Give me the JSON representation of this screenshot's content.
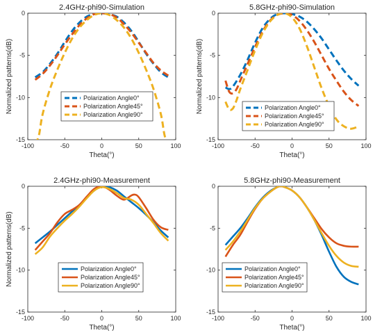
{
  "chart_data": [
    {
      "type": "line",
      "title": "2.4GHz-phi90-Simulation",
      "xlabel": "Theta(°)",
      "ylabel": "Normalized patterns(dB)",
      "xlim": [
        -100,
        100
      ],
      "ylim": [
        -15,
        0
      ],
      "xticks": [
        "-100",
        "-50",
        "0",
        "50",
        "100"
      ],
      "yticks": [
        "0",
        "-5",
        "-10",
        "-15"
      ],
      "grid": false,
      "line_style": "dashed",
      "legend": "center-bottom",
      "series": [
        {
          "name": "Polarization Angle0°",
          "color": "#0072BD",
          "x": [
            -90,
            -80,
            -70,
            -60,
            -50,
            -40,
            -30,
            -20,
            -10,
            0,
            10,
            20,
            30,
            40,
            50,
            60,
            70,
            80,
            90
          ],
          "y": [
            -7.6,
            -7.0,
            -6.0,
            -4.8,
            -3.4,
            -2.1,
            -1.1,
            -0.4,
            -0.1,
            0,
            -0.1,
            -0.4,
            -1.1,
            -2.1,
            -3.4,
            -4.8,
            -6.0,
            -7.0,
            -7.6
          ]
        },
        {
          "name": "Polarization Angle45°",
          "color": "#D95319",
          "x": [
            -90,
            -80,
            -70,
            -60,
            -50,
            -40,
            -30,
            -20,
            -10,
            0,
            10,
            20,
            30,
            40,
            50,
            60,
            70,
            80,
            90
          ],
          "y": [
            -7.9,
            -7.2,
            -6.2,
            -5.0,
            -3.7,
            -2.5,
            -1.4,
            -0.6,
            -0.1,
            0,
            -0.1,
            -0.5,
            -1.3,
            -2.3,
            -3.5,
            -4.7,
            -5.9,
            -6.8,
            -7.4
          ]
        },
        {
          "name": "Polarization Angle90°",
          "color": "#EDB120",
          "x": [
            -90,
            -85,
            -80,
            -70,
            -60,
            -50,
            -40,
            -30,
            -20,
            -10,
            0,
            10,
            20,
            30,
            40,
            50,
            60,
            70,
            80,
            85,
            90
          ],
          "y": [
            -15.5,
            -14.5,
            -12.0,
            -9.0,
            -6.7,
            -4.7,
            -3.0,
            -1.7,
            -0.8,
            -0.2,
            0,
            -0.2,
            -0.8,
            -1.7,
            -3.0,
            -4.7,
            -6.7,
            -9.0,
            -12.0,
            -14.5,
            -15.5
          ]
        }
      ]
    },
    {
      "type": "line",
      "title": "5.8GHz-phi90-Simulation",
      "xlabel": "Theta(°)",
      "ylabel": "Normalized patterns(dB)",
      "xlim": [
        -100,
        100
      ],
      "ylim": [
        -15,
        0
      ],
      "xticks": [
        "-100",
        "-50",
        "0",
        "50",
        "100"
      ],
      "yticks": [
        "0",
        "-5",
        "-10",
        "-15"
      ],
      "grid": false,
      "line_style": "dashed",
      "legend": "bottom-right",
      "series": [
        {
          "name": "Polarization Angle0°",
          "color": "#0072BD",
          "x": [
            -90,
            -85,
            -80,
            -70,
            -60,
            -50,
            -40,
            -30,
            -20,
            -10,
            0,
            10,
            20,
            30,
            40,
            50,
            60,
            70,
            80,
            90
          ],
          "y": [
            -8.8,
            -9.0,
            -8.7,
            -7.3,
            -5.5,
            -3.5,
            -1.8,
            -0.7,
            -0.1,
            0,
            -0.1,
            -0.4,
            -1.0,
            -1.9,
            -3.0,
            -4.3,
            -5.6,
            -6.8,
            -7.8,
            -8.6
          ]
        },
        {
          "name": "Polarization Angle45°",
          "color": "#D95319",
          "x": [
            -90,
            -85,
            -80,
            -75,
            -70,
            -60,
            -50,
            -40,
            -30,
            -20,
            -10,
            0,
            10,
            20,
            30,
            40,
            50,
            60,
            70,
            80,
            90
          ],
          "y": [
            -8.0,
            -9.3,
            -9.5,
            -9.0,
            -8.0,
            -6.0,
            -4.0,
            -2.2,
            -0.9,
            -0.2,
            0,
            -0.2,
            -0.9,
            -2.0,
            -3.4,
            -5.0,
            -6.6,
            -8.0,
            -9.3,
            -10.3,
            -11.0
          ]
        },
        {
          "name": "Polarization Angle90°",
          "color": "#EDB120",
          "x": [
            -90,
            -85,
            -80,
            -75,
            -70,
            -60,
            -50,
            -40,
            -30,
            -20,
            -10,
            0,
            10,
            20,
            30,
            40,
            50,
            60,
            70,
            80,
            90
          ],
          "y": [
            -10.5,
            -11.4,
            -11.3,
            -10.3,
            -9.0,
            -6.7,
            -4.4,
            -2.4,
            -1.0,
            -0.2,
            0,
            -0.5,
            -1.8,
            -3.9,
            -6.4,
            -8.9,
            -11.0,
            -12.6,
            -13.4,
            -13.7,
            -13.4
          ]
        }
      ]
    },
    {
      "type": "line",
      "title": "2.4GHz-phi90-Measurement",
      "xlabel": "Theta(°)",
      "ylabel": "Normalized patterns(dB)",
      "xlim": [
        -100,
        100
      ],
      "ylim": [
        -15,
        0
      ],
      "xticks": [
        "-100",
        "-50",
        "0",
        "50",
        "100"
      ],
      "yticks": [
        "0",
        "-5",
        "-10",
        "-15"
      ],
      "grid": false,
      "line_style": "solid",
      "legend": "center-bottom",
      "series": [
        {
          "name": "Polarization Angle0°",
          "color": "#0072BD",
          "x": [
            -90,
            -80,
            -70,
            -60,
            -50,
            -40,
            -30,
            -20,
            -10,
            0,
            10,
            20,
            30,
            40,
            50,
            60,
            70,
            80,
            90
          ],
          "y": [
            -6.8,
            -6.1,
            -5.4,
            -4.6,
            -3.8,
            -3.0,
            -2.2,
            -1.3,
            -0.5,
            0,
            -0.1,
            -0.5,
            -1.2,
            -1.9,
            -2.6,
            -3.4,
            -4.3,
            -5.3,
            -6.1
          ]
        },
        {
          "name": "Polarization Angle45°",
          "color": "#D95319",
          "x": [
            -90,
            -80,
            -70,
            -60,
            -50,
            -40,
            -30,
            -20,
            -10,
            0,
            10,
            20,
            30,
            40,
            45,
            50,
            60,
            70,
            80,
            90
          ],
          "y": [
            -7.6,
            -6.6,
            -5.6,
            -4.3,
            -3.3,
            -2.8,
            -2.2,
            -1.2,
            -0.3,
            0,
            -0.4,
            -1.1,
            -1.6,
            -1.1,
            -1.0,
            -1.3,
            -2.6,
            -4.0,
            -4.9,
            -5.2
          ]
        },
        {
          "name": "Polarization Angle90°",
          "color": "#EDB120",
          "x": [
            -90,
            -80,
            -70,
            -60,
            -50,
            -40,
            -30,
            -20,
            -10,
            0,
            10,
            20,
            30,
            40,
            50,
            60,
            70,
            80,
            90
          ],
          "y": [
            -8.1,
            -7.3,
            -6.0,
            -5.0,
            -4.1,
            -3.3,
            -2.4,
            -1.4,
            -0.5,
            -0.1,
            -0.3,
            -0.8,
            -1.4,
            -1.6,
            -2.2,
            -3.3,
            -4.4,
            -5.6,
            -6.5
          ]
        }
      ]
    },
    {
      "type": "line",
      "title": "5.8GHz-phi90-Measurement",
      "xlabel": "Theta(°)",
      "ylabel": "",
      "xlim": [
        -100,
        100
      ],
      "ylim": [
        -15,
        0
      ],
      "xticks": [
        "-100",
        "-50",
        "0",
        "50",
        "100"
      ],
      "yticks": [
        "0",
        "-5",
        "-10",
        "-15"
      ],
      "grid": false,
      "line_style": "solid",
      "legend": "bottom-left",
      "series": [
        {
          "name": "Polarization Angle0°",
          "color": "#0072BD",
          "x": [
            -90,
            -80,
            -70,
            -60,
            -50,
            -40,
            -30,
            -20,
            -15,
            -10,
            0,
            10,
            20,
            30,
            40,
            50,
            60,
            70,
            80,
            90
          ],
          "y": [
            -7.0,
            -6.0,
            -5.0,
            -3.8,
            -2.5,
            -1.4,
            -0.6,
            -0.1,
            0,
            -0.1,
            -0.5,
            -1.3,
            -2.5,
            -4.0,
            -5.8,
            -7.8,
            -9.6,
            -10.8,
            -11.4,
            -11.7
          ]
        },
        {
          "name": "Polarization Angle45°",
          "color": "#D95319",
          "x": [
            -90,
            -80,
            -70,
            -60,
            -50,
            -40,
            -30,
            -20,
            -15,
            -10,
            0,
            10,
            20,
            30,
            40,
            50,
            60,
            70,
            80,
            90
          ],
          "y": [
            -8.4,
            -7.0,
            -5.8,
            -4.2,
            -2.7,
            -1.5,
            -0.7,
            -0.1,
            0,
            -0.1,
            -0.5,
            -1.3,
            -2.5,
            -3.8,
            -5.1,
            -6.1,
            -6.8,
            -7.1,
            -7.2,
            -7.2
          ]
        },
        {
          "name": "Polarization Angle90°",
          "color": "#EDB120",
          "x": [
            -90,
            -80,
            -70,
            -60,
            -50,
            -40,
            -30,
            -20,
            -15,
            -10,
            0,
            10,
            20,
            30,
            40,
            50,
            60,
            70,
            80,
            90
          ],
          "y": [
            -7.6,
            -6.6,
            -5.4,
            -4.0,
            -2.6,
            -1.5,
            -0.7,
            -0.1,
            0,
            -0.1,
            -0.5,
            -1.3,
            -2.5,
            -4.0,
            -5.6,
            -7.1,
            -8.3,
            -9.1,
            -9.5,
            -9.6
          ]
        }
      ]
    }
  ]
}
